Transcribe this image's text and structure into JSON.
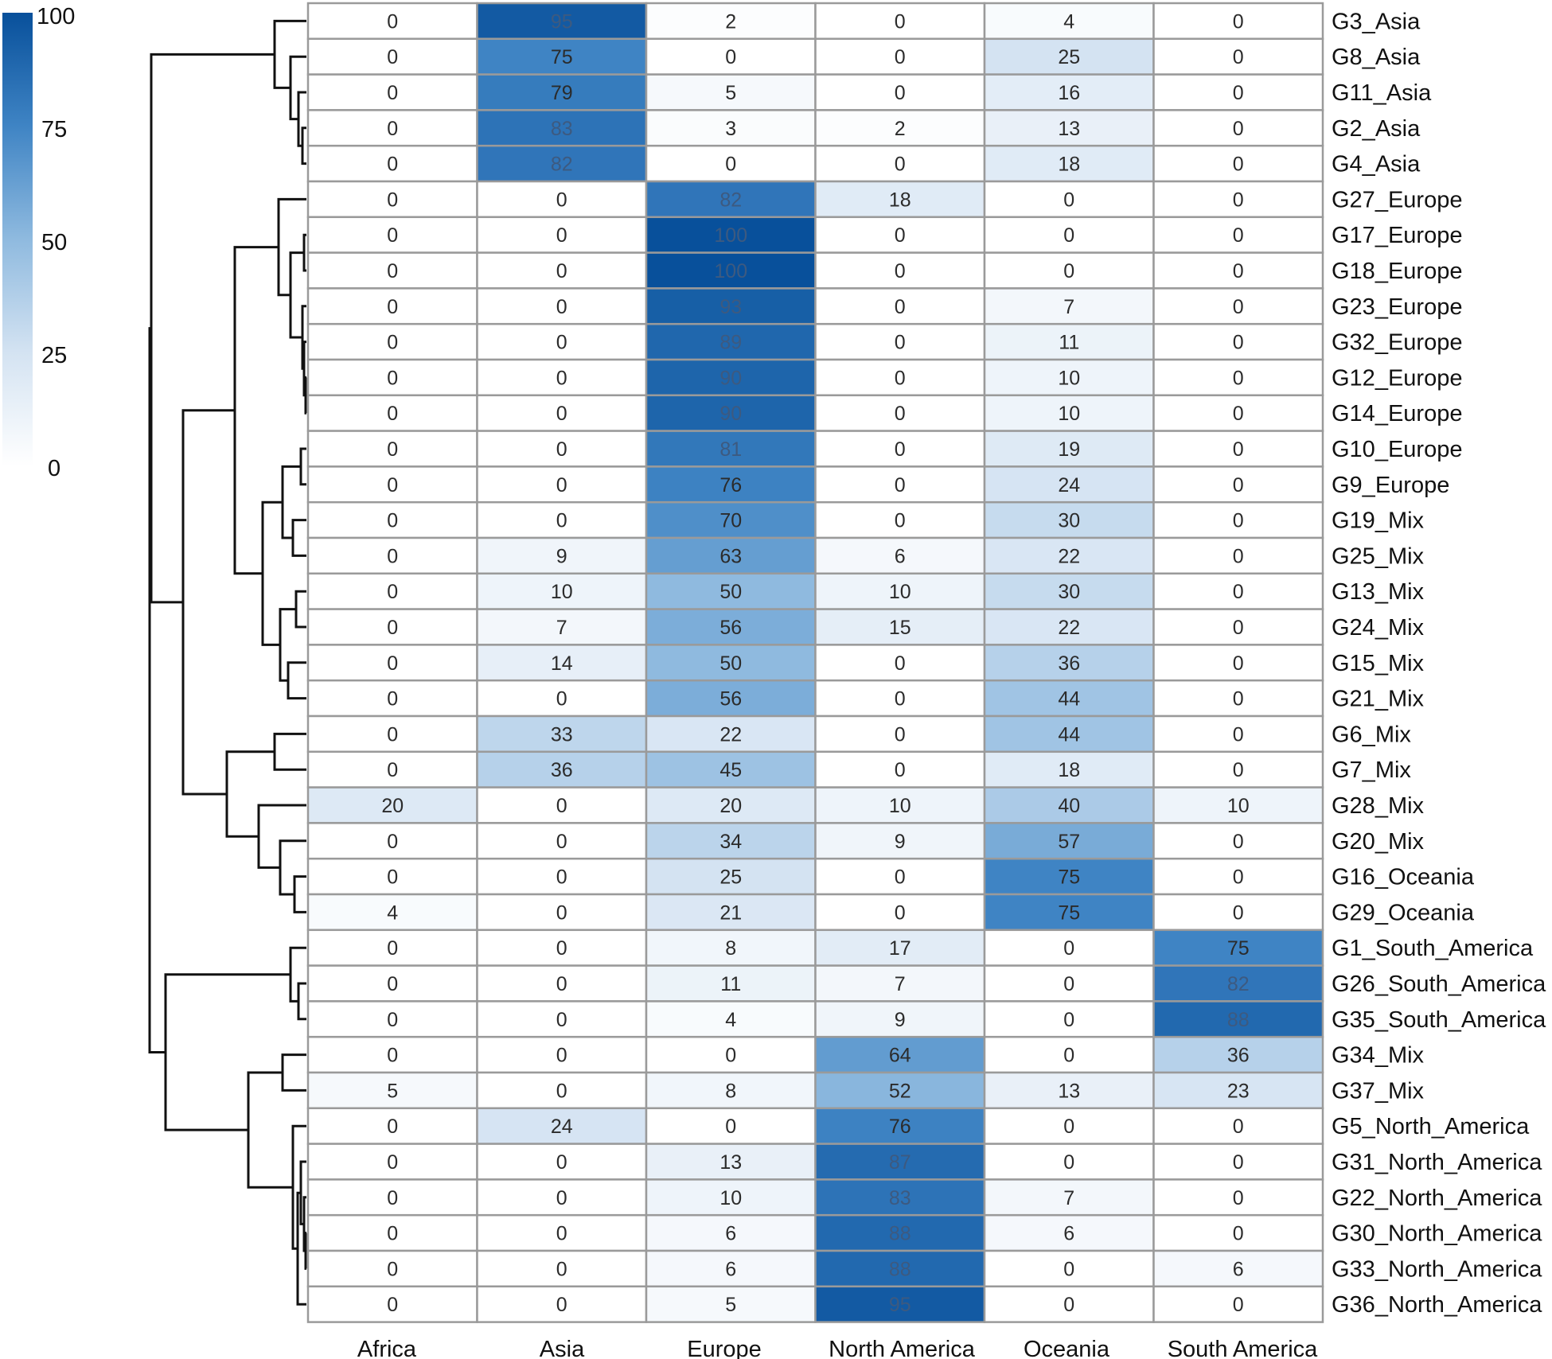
{
  "chart_data": {
    "type": "heatmap",
    "title": "",
    "xlabel": "",
    "ylabel": "",
    "columns": [
      "Africa",
      "Asia",
      "Europe",
      "North America",
      "Oceania",
      "South America"
    ],
    "rows": [
      {
        "label": "G3_Asia",
        "values": [
          0,
          95,
          2,
          0,
          4,
          0
        ]
      },
      {
        "label": "G8_Asia",
        "values": [
          0,
          75,
          0,
          0,
          25,
          0
        ]
      },
      {
        "label": "G11_Asia",
        "values": [
          0,
          79,
          5,
          0,
          16,
          0
        ]
      },
      {
        "label": "G2_Asia",
        "values": [
          0,
          83,
          3,
          2,
          13,
          0
        ]
      },
      {
        "label": "G4_Asia",
        "values": [
          0,
          82,
          0,
          0,
          18,
          0
        ]
      },
      {
        "label": "G27_Europe",
        "values": [
          0,
          0,
          82,
          18,
          0,
          0
        ]
      },
      {
        "label": "G17_Europe",
        "values": [
          0,
          0,
          100,
          0,
          0,
          0
        ]
      },
      {
        "label": "G18_Europe",
        "values": [
          0,
          0,
          100,
          0,
          0,
          0
        ]
      },
      {
        "label": "G23_Europe",
        "values": [
          0,
          0,
          93,
          0,
          7,
          0
        ]
      },
      {
        "label": "G32_Europe",
        "values": [
          0,
          0,
          89,
          0,
          11,
          0
        ]
      },
      {
        "label": "G12_Europe",
        "values": [
          0,
          0,
          90,
          0,
          10,
          0
        ]
      },
      {
        "label": "G14_Europe",
        "values": [
          0,
          0,
          90,
          0,
          10,
          0
        ]
      },
      {
        "label": "G10_Europe",
        "values": [
          0,
          0,
          81,
          0,
          19,
          0
        ]
      },
      {
        "label": "G9_Europe",
        "values": [
          0,
          0,
          76,
          0,
          24,
          0
        ]
      },
      {
        "label": "G19_Mix",
        "values": [
          0,
          0,
          70,
          0,
          30,
          0
        ]
      },
      {
        "label": "G25_Mix",
        "values": [
          0,
          9,
          63,
          6,
          22,
          0
        ]
      },
      {
        "label": "G13_Mix",
        "values": [
          0,
          10,
          50,
          10,
          30,
          0
        ]
      },
      {
        "label": "G24_Mix",
        "values": [
          0,
          7,
          56,
          15,
          22,
          0
        ]
      },
      {
        "label": "G15_Mix",
        "values": [
          0,
          14,
          50,
          0,
          36,
          0
        ]
      },
      {
        "label": "G21_Mix",
        "values": [
          0,
          0,
          56,
          0,
          44,
          0
        ]
      },
      {
        "label": "G6_Mix",
        "values": [
          0,
          33,
          22,
          0,
          44,
          0
        ]
      },
      {
        "label": "G7_Mix",
        "values": [
          0,
          36,
          45,
          0,
          18,
          0
        ]
      },
      {
        "label": "G28_Mix",
        "values": [
          20,
          0,
          20,
          10,
          40,
          10
        ]
      },
      {
        "label": "G20_Mix",
        "values": [
          0,
          0,
          34,
          9,
          57,
          0
        ]
      },
      {
        "label": "G16_Oceania",
        "values": [
          0,
          0,
          25,
          0,
          75,
          0
        ]
      },
      {
        "label": "G29_Oceania",
        "values": [
          4,
          0,
          21,
          0,
          75,
          0
        ]
      },
      {
        "label": "G1_South_America",
        "values": [
          0,
          0,
          8,
          17,
          0,
          75
        ]
      },
      {
        "label": "G26_South_America",
        "values": [
          0,
          0,
          11,
          7,
          0,
          82
        ]
      },
      {
        "label": "G35_South_America",
        "values": [
          0,
          0,
          4,
          9,
          0,
          88
        ]
      },
      {
        "label": "G34_Mix",
        "values": [
          0,
          0,
          0,
          64,
          0,
          36
        ]
      },
      {
        "label": "G37_Mix",
        "values": [
          5,
          0,
          8,
          52,
          13,
          23
        ]
      },
      {
        "label": "G5_North_America",
        "values": [
          0,
          24,
          0,
          76,
          0,
          0
        ]
      },
      {
        "label": "G31_North_America",
        "values": [
          0,
          0,
          13,
          87,
          0,
          0
        ]
      },
      {
        "label": "G22_North_America",
        "values": [
          0,
          0,
          10,
          83,
          7,
          0
        ]
      },
      {
        "label": "G30_North_America",
        "values": [
          0,
          0,
          6,
          88,
          6,
          0
        ]
      },
      {
        "label": "G33_North_America",
        "values": [
          0,
          0,
          6,
          88,
          0,
          6
        ]
      },
      {
        "label": "G36_North_America",
        "values": [
          0,
          0,
          5,
          95,
          0,
          0
        ]
      }
    ],
    "color_scale": {
      "range": [
        0,
        100
      ],
      "low_color": "#ffffff",
      "high_color": "#08509b",
      "ticks": [
        0,
        25,
        50,
        75,
        100
      ]
    },
    "grid": true,
    "legend": "top-left",
    "dendrogram": "left"
  }
}
